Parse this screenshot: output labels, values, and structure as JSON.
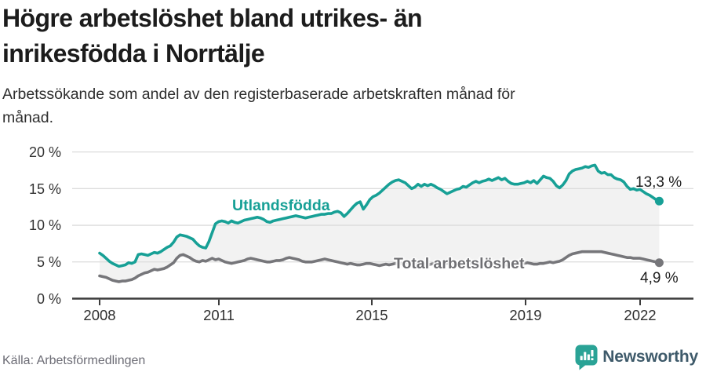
{
  "head": {
    "title": "Högre arbetslöshet bland utrikes- än\ninrikesfödda i Norrtälje",
    "subtitle": "Arbetssökande som andel av den registerbaserade arbetskraften månad för\nmånad."
  },
  "footer": {
    "source": "Källa: Arbetsförmedlingen",
    "brand": "Newsworthy"
  },
  "chart_data": {
    "type": "line",
    "title": "Högre arbetslöshet bland utrikes- än inrikesfödda i Norrtälje",
    "subtitle": "Arbetssökande som andel av den registerbaserade arbetskraften månad för månad.",
    "x_unit": "month",
    "x_start": "2008-01",
    "x_end": "2022-07",
    "x_ticks": [
      "2008",
      "2011",
      "2015",
      "2019",
      "2022"
    ],
    "y_ticks": [
      "20 %",
      "15 %",
      "10 %",
      "5 %",
      "0 %"
    ],
    "y_tick_values": [
      20,
      15,
      10,
      5,
      0
    ],
    "ylim": [
      0,
      21
    ],
    "grid": true,
    "area_fill_between_series": true,
    "colors": {
      "grid": "#dcdcdc",
      "axis": "#3c3c3c",
      "band": "#f2f2f2"
    },
    "series": [
      {
        "name": "Utlandsfödda",
        "color": "#17a096",
        "end_label": "13,3 %",
        "end_value": 13.3,
        "values": [
          6.2,
          5.9,
          5.5,
          5.1,
          4.8,
          4.6,
          4.4,
          4.5,
          4.6,
          4.9,
          4.8,
          5.0,
          6.0,
          6.1,
          6.0,
          5.9,
          6.1,
          6.3,
          6.2,
          6.4,
          6.7,
          7.0,
          7.2,
          7.7,
          8.4,
          8.7,
          8.6,
          8.5,
          8.3,
          8.1,
          7.6,
          7.2,
          7.0,
          6.9,
          7.8,
          9.0,
          10.2,
          10.5,
          10.6,
          10.5,
          10.3,
          10.6,
          10.4,
          10.3,
          10.5,
          10.7,
          10.8,
          10.9,
          11.0,
          11.1,
          11.0,
          10.8,
          10.5,
          10.4,
          10.6,
          10.7,
          10.8,
          10.9,
          11.0,
          11.1,
          11.2,
          11.3,
          11.2,
          11.1,
          11.0,
          11.1,
          11.2,
          11.3,
          11.4,
          11.5,
          11.5,
          11.6,
          11.6,
          11.8,
          11.9,
          11.7,
          11.2,
          11.6,
          12.1,
          12.6,
          13.0,
          13.2,
          12.2,
          12.8,
          13.5,
          13.9,
          14.1,
          14.4,
          14.8,
          15.2,
          15.6,
          15.9,
          16.1,
          16.2,
          16.0,
          15.8,
          15.4,
          15.0,
          15.2,
          15.6,
          15.3,
          15.6,
          15.4,
          15.6,
          15.4,
          15.1,
          14.9,
          14.6,
          14.3,
          14.5,
          14.7,
          14.9,
          15.0,
          15.3,
          15.2,
          15.5,
          15.8,
          16.0,
          15.8,
          16.0,
          16.1,
          16.3,
          16.1,
          16.3,
          16.5,
          16.2,
          16.4,
          16.0,
          15.7,
          15.6,
          15.6,
          15.7,
          15.8,
          16.0,
          15.8,
          16.1,
          15.7,
          16.2,
          16.7,
          16.5,
          16.4,
          16.0,
          15.4,
          15.1,
          15.5,
          16.1,
          17.0,
          17.4,
          17.6,
          17.7,
          17.8,
          18.0,
          17.9,
          18.1,
          18.2,
          17.4,
          17.1,
          17.2,
          16.9,
          16.9,
          16.5,
          16.3,
          16.2,
          15.9,
          15.3,
          14.9,
          15.0,
          14.8,
          14.9,
          14.6,
          14.3,
          14.1,
          13.8,
          13.5,
          13.3
        ]
      },
      {
        "name": "Total arbetslöshet",
        "color": "#76767a",
        "end_label": "4,9 %",
        "end_value": 4.9,
        "values": [
          3.1,
          3.0,
          2.9,
          2.7,
          2.5,
          2.4,
          2.3,
          2.4,
          2.4,
          2.5,
          2.6,
          2.8,
          3.1,
          3.3,
          3.5,
          3.6,
          3.8,
          4.0,
          3.9,
          4.0,
          4.1,
          4.3,
          4.6,
          4.9,
          5.5,
          5.9,
          6.0,
          5.8,
          5.6,
          5.3,
          5.1,
          5.0,
          5.2,
          5.1,
          5.3,
          5.5,
          5.3,
          5.4,
          5.2,
          5.0,
          4.9,
          4.8,
          4.9,
          5.0,
          5.1,
          5.2,
          5.4,
          5.5,
          5.4,
          5.3,
          5.2,
          5.1,
          5.0,
          5.0,
          5.1,
          5.2,
          5.2,
          5.3,
          5.5,
          5.6,
          5.5,
          5.4,
          5.3,
          5.1,
          5.0,
          5.0,
          5.0,
          5.1,
          5.2,
          5.3,
          5.4,
          5.3,
          5.2,
          5.1,
          5.0,
          4.9,
          4.8,
          4.7,
          4.8,
          4.7,
          4.6,
          4.6,
          4.7,
          4.8,
          4.8,
          4.7,
          4.6,
          4.5,
          4.6,
          4.7,
          4.6,
          4.7,
          4.8,
          4.7,
          4.8,
          4.9,
          4.9,
          4.8,
          4.7,
          4.7,
          4.6,
          4.7,
          4.6,
          4.7,
          4.8,
          4.7,
          4.7,
          4.8,
          4.8,
          4.9,
          4.8,
          4.7,
          4.7,
          4.8,
          4.7,
          4.8,
          4.9,
          4.8,
          4.8,
          4.9,
          4.9,
          4.8,
          4.8,
          4.7,
          4.6,
          4.7,
          4.6,
          4.6,
          4.7,
          4.6,
          4.7,
          4.8,
          4.8,
          4.9,
          4.8,
          4.7,
          4.7,
          4.8,
          4.8,
          4.9,
          5.0,
          4.9,
          5.0,
          5.1,
          5.3,
          5.6,
          5.9,
          6.1,
          6.2,
          6.3,
          6.4,
          6.4,
          6.4,
          6.4,
          6.4,
          6.4,
          6.4,
          6.3,
          6.2,
          6.1,
          6.0,
          5.9,
          5.8,
          5.7,
          5.6,
          5.6,
          5.5,
          5.5,
          5.5,
          5.4,
          5.3,
          5.2,
          5.1,
          5.0,
          4.9
        ]
      }
    ]
  }
}
